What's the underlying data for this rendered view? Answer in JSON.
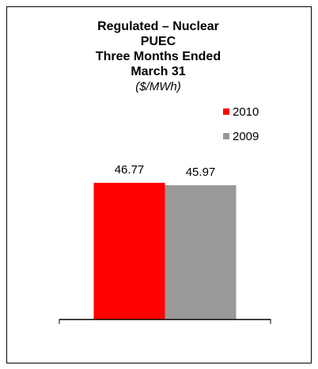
{
  "chart_data": {
    "type": "bar",
    "title": [
      "Regulated – Nuclear",
      "PUEC",
      "Three Months Ended",
      "March 31"
    ],
    "subtitle": "($/MWh)",
    "categories": [
      null
    ],
    "series": [
      {
        "name": "2010",
        "color": "#ff0000",
        "values": [
          46.77
        ]
      },
      {
        "name": "2009",
        "color": "#999999",
        "values": [
          45.97
        ]
      }
    ],
    "ylim": [
      0,
      50
    ],
    "legend": "right"
  }
}
